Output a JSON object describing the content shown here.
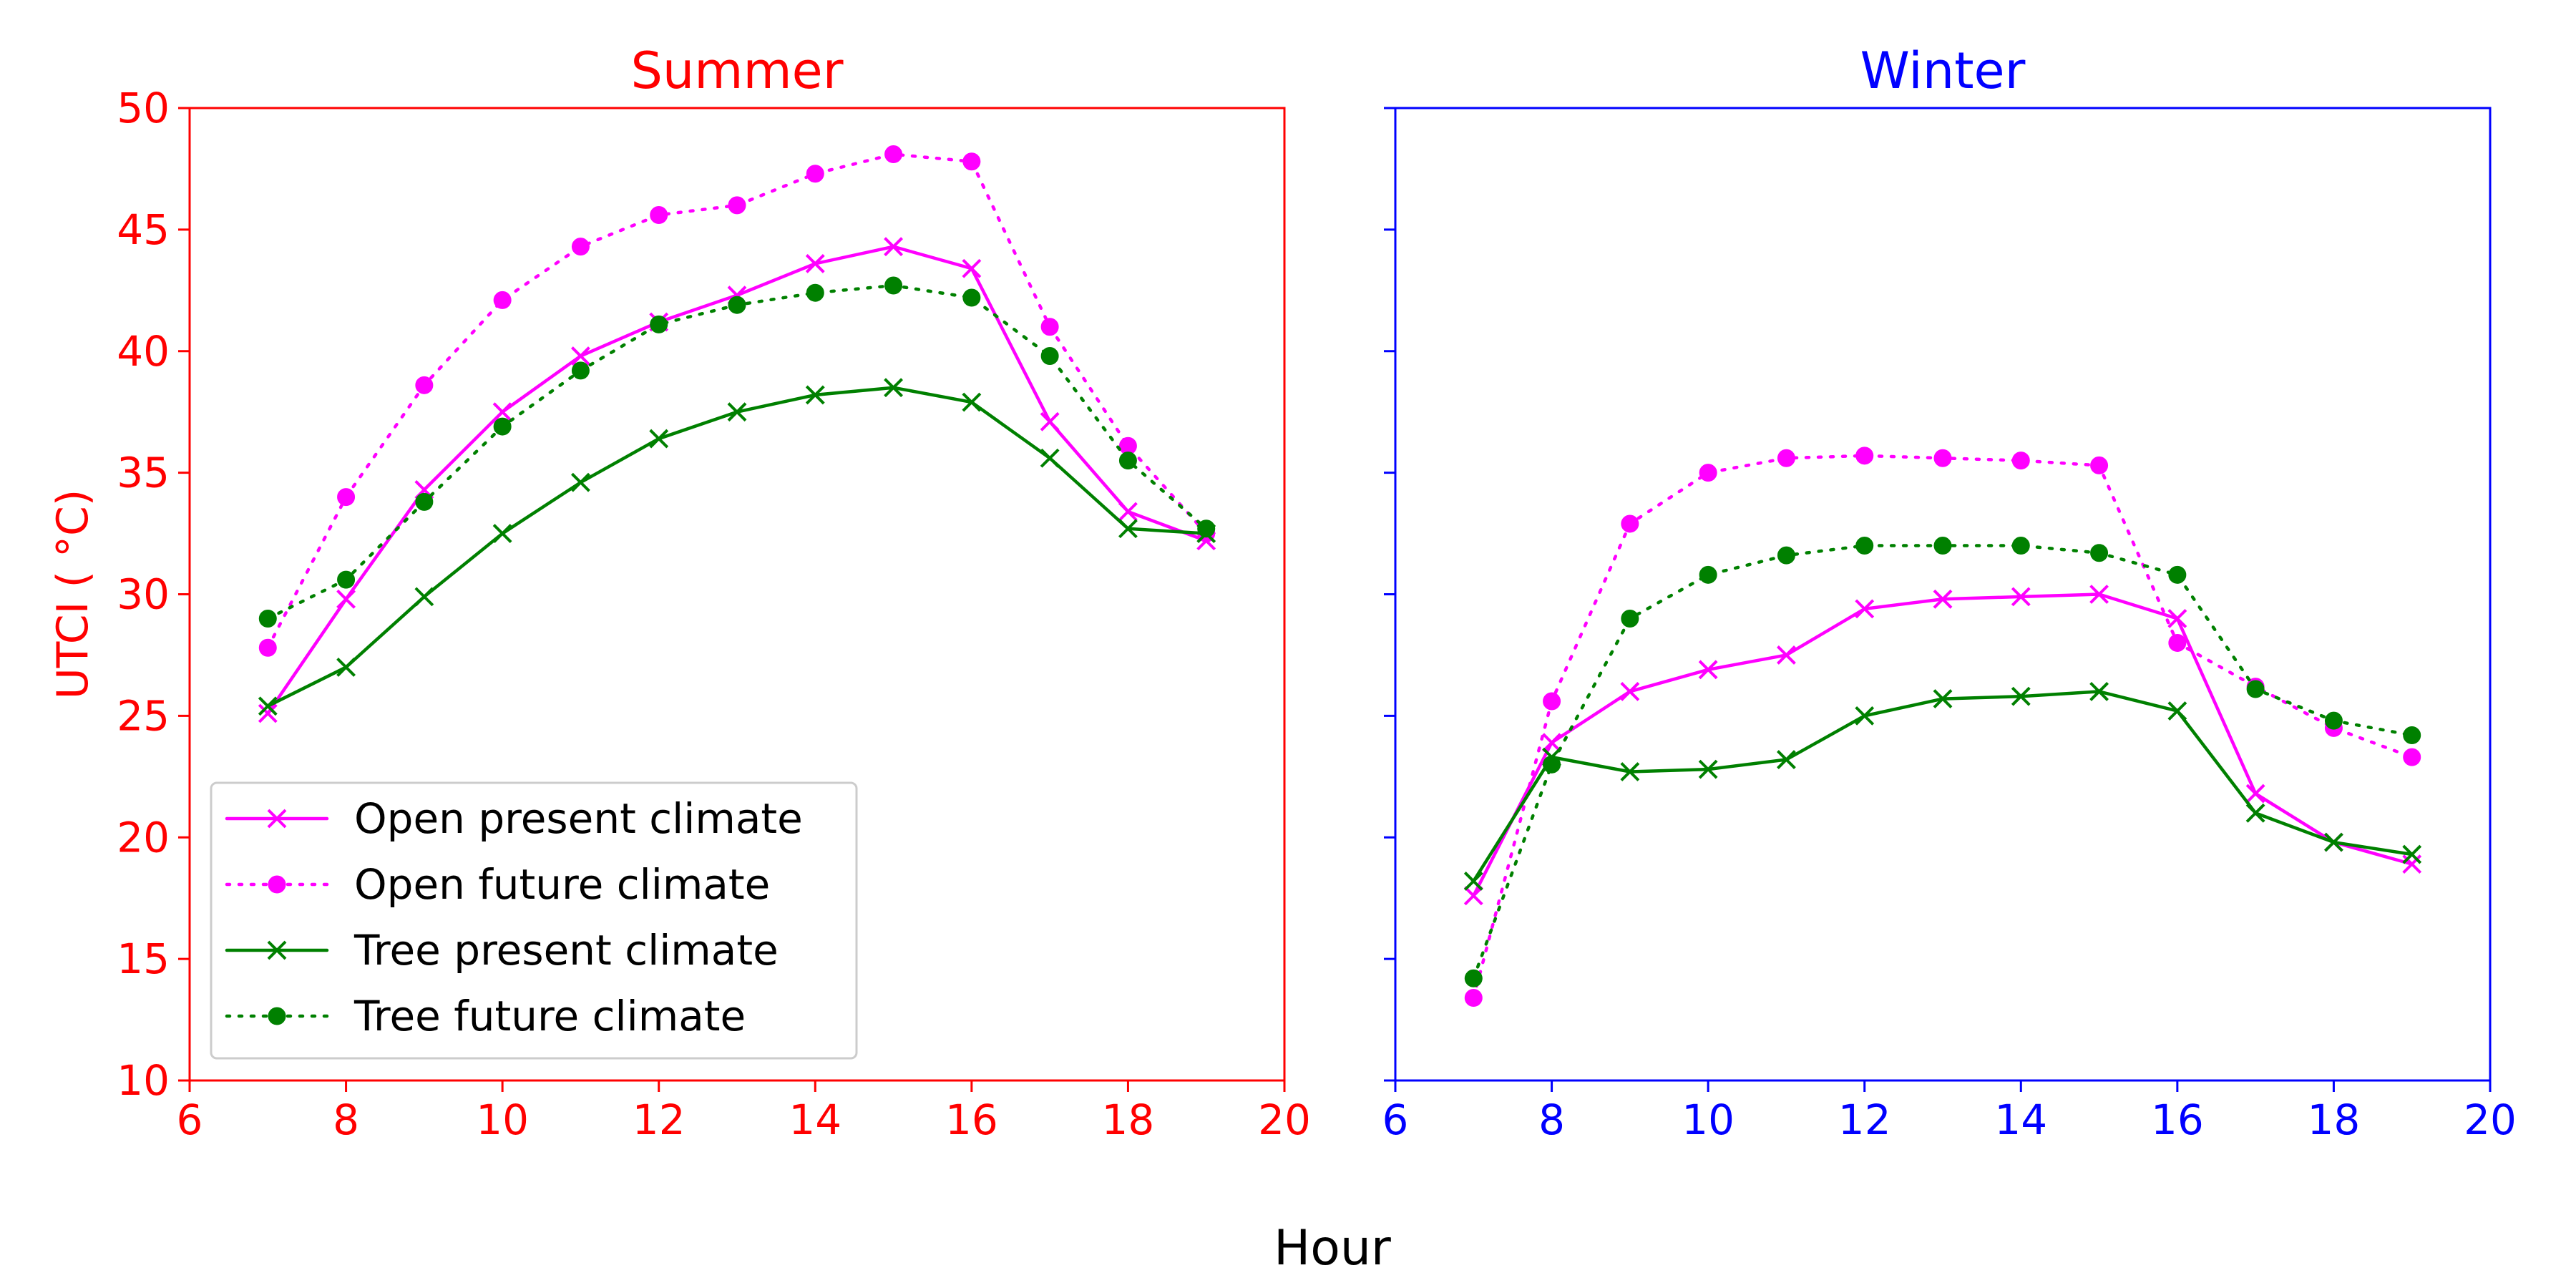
{
  "figure": {
    "xlabel": "Hour"
  },
  "chart_data": [
    {
      "type": "line",
      "title": "Summer",
      "title_color": "#ff0000",
      "axis_color": "#ff0000",
      "ylabel": "UTCI ( $^\\circ$C)",
      "ylabel_display": "UTCI ( °C)",
      "xlim": [
        6,
        20
      ],
      "ylim": [
        10,
        50
      ],
      "xticks": [
        6,
        8,
        10,
        12,
        14,
        16,
        18,
        20
      ],
      "yticks": [
        10,
        15,
        20,
        25,
        30,
        35,
        40,
        45,
        50
      ],
      "show_y_tick_labels": true,
      "grid": false,
      "legend": "lower-left",
      "x": [
        7,
        8,
        9,
        10,
        11,
        12,
        13,
        14,
        15,
        16,
        17,
        18,
        19
      ],
      "series": [
        {
          "name": "Open present climate",
          "color": "#ff00ff",
          "linestyle": "solid",
          "marker": "x",
          "values": [
            25.1,
            29.8,
            34.3,
            37.5,
            39.8,
            41.2,
            42.3,
            43.6,
            44.3,
            43.4,
            37.1,
            33.4,
            32.2
          ]
        },
        {
          "name": "Open future climate",
          "color": "#ff00ff",
          "linestyle": "dotted",
          "marker": "o",
          "values": [
            27.8,
            34.0,
            38.6,
            42.1,
            44.3,
            45.6,
            46.0,
            47.3,
            48.1,
            47.8,
            41.0,
            36.1,
            32.5
          ]
        },
        {
          "name": "Tree present climate",
          "color": "#008000",
          "linestyle": "solid",
          "marker": "x",
          "values": [
            25.4,
            27.0,
            29.9,
            32.5,
            34.6,
            36.4,
            37.5,
            38.2,
            38.5,
            37.9,
            35.6,
            32.7,
            32.5
          ]
        },
        {
          "name": "Tree future climate",
          "color": "#008000",
          "linestyle": "dotted",
          "marker": "o",
          "values": [
            29.0,
            30.6,
            33.8,
            36.9,
            39.2,
            41.1,
            41.9,
            42.4,
            42.7,
            42.2,
            39.8,
            35.5,
            32.7
          ]
        }
      ]
    },
    {
      "type": "line",
      "title": "Winter",
      "title_color": "#0000ff",
      "axis_color": "#0000ff",
      "xlim": [
        6,
        20
      ],
      "ylim": [
        10,
        50
      ],
      "xticks": [
        6,
        8,
        10,
        12,
        14,
        16,
        18,
        20
      ],
      "yticks": [
        10,
        15,
        20,
        25,
        30,
        35,
        40,
        45,
        50
      ],
      "show_y_tick_labels": false,
      "grid": false,
      "x": [
        7,
        8,
        9,
        10,
        11,
        12,
        13,
        14,
        15,
        16,
        17,
        18,
        19
      ],
      "series": [
        {
          "name": "Open present climate",
          "color": "#ff00ff",
          "linestyle": "solid",
          "marker": "x",
          "values": [
            17.6,
            23.9,
            26.0,
            26.9,
            27.5,
            29.4,
            29.8,
            29.9,
            30.0,
            29.0,
            21.8,
            19.8,
            18.9
          ]
        },
        {
          "name": "Open future climate",
          "color": "#ff00ff",
          "linestyle": "dotted",
          "marker": "o",
          "values": [
            13.4,
            25.6,
            32.9,
            35.0,
            35.6,
            35.7,
            35.6,
            35.5,
            35.3,
            28.0,
            26.2,
            24.5,
            23.3
          ]
        },
        {
          "name": "Tree present climate",
          "color": "#008000",
          "linestyle": "solid",
          "marker": "x",
          "values": [
            18.2,
            23.3,
            22.7,
            22.8,
            23.2,
            25.0,
            25.7,
            25.8,
            26.0,
            25.2,
            21.0,
            19.8,
            19.3
          ]
        },
        {
          "name": "Tree future climate",
          "color": "#008000",
          "linestyle": "dotted",
          "marker": "o",
          "values": [
            14.2,
            23.0,
            29.0,
            30.8,
            31.6,
            32.0,
            32.0,
            32.0,
            31.7,
            30.8,
            26.1,
            24.8,
            24.2
          ]
        }
      ]
    }
  ]
}
